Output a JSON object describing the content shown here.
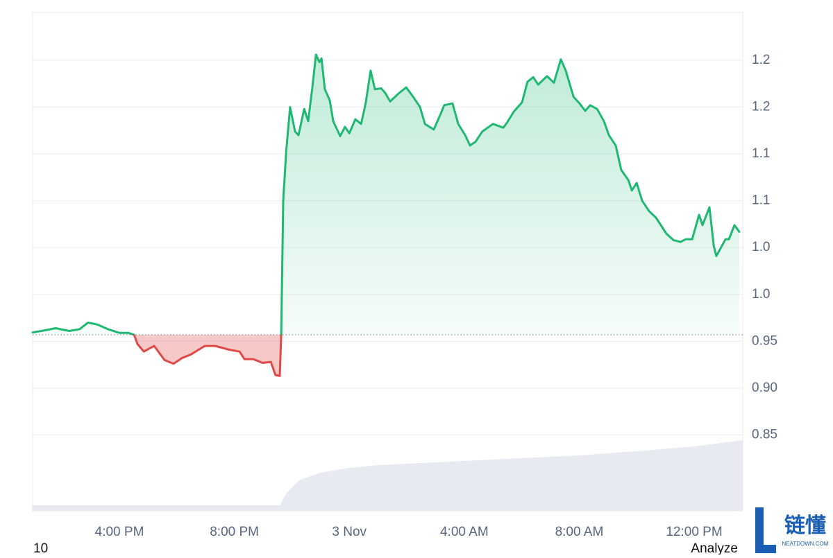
{
  "chart_data": {
    "type": "line",
    "x": [
      12.98,
      13.29,
      13.78,
      14.26,
      14.62,
      14.91,
      15.23,
      15.59,
      16.0,
      16.31,
      16.51,
      16.63,
      16.85,
      17.21,
      17.57,
      17.88,
      18.17,
      18.49,
      18.97,
      19.33,
      19.82,
      20.18,
      20.35,
      20.66,
      20.98,
      21.27,
      21.43,
      21.58,
      21.63,
      21.7,
      21.8,
      21.94,
      22.11,
      22.23,
      22.43,
      22.57,
      22.71,
      22.84,
      22.96,
      23.03,
      23.15,
      23.32,
      23.44,
      23.68,
      23.85,
      24.0,
      24.21,
      24.41,
      24.57,
      24.74,
      24.89,
      25.11,
      25.25,
      25.42,
      25.73,
      25.98,
      26.22,
      26.46,
      26.63,
      26.94,
      27.18,
      27.3,
      27.59,
      27.79,
      28.03,
      28.2,
      28.39,
      28.63,
      29.0,
      29.36,
      29.48,
      29.72,
      30.01,
      30.2,
      30.4,
      30.57,
      30.88,
      31.12,
      31.36,
      31.53,
      31.8,
      32.01,
      32.21,
      32.38,
      32.62,
      32.86,
      33.03,
      33.27,
      33.46,
      33.71,
      33.83,
      34.0,
      34.19,
      34.43,
      34.67,
      35.03,
      35.28,
      35.52,
      35.71,
      35.93,
      36.17,
      36.29,
      36.53,
      36.68,
      36.77,
      37.09,
      37.21,
      37.4,
      37.57
    ],
    "values": [
      0.9595,
      0.961,
      0.964,
      0.961,
      0.963,
      0.97,
      0.968,
      0.963,
      0.959,
      0.959,
      0.957,
      0.947,
      0.939,
      0.945,
      0.93,
      0.926,
      0.932,
      0.936,
      0.945,
      0.945,
      0.941,
      0.939,
      0.931,
      0.931,
      0.927,
      0.928,
      0.914,
      0.913,
      0.957,
      1.1,
      1.152,
      1.2,
      1.174,
      1.17,
      1.198,
      1.185,
      1.22,
      1.256,
      1.248,
      1.252,
      1.219,
      1.207,
      1.185,
      1.169,
      1.179,
      1.172,
      1.187,
      1.182,
      1.204,
      1.239,
      1.219,
      1.22,
      1.215,
      1.206,
      1.215,
      1.221,
      1.211,
      1.2,
      1.182,
      1.176,
      1.193,
      1.202,
      1.204,
      1.182,
      1.17,
      1.159,
      1.163,
      1.174,
      1.182,
      1.178,
      1.183,
      1.195,
      1.205,
      1.227,
      1.232,
      1.224,
      1.233,
      1.226,
      1.251,
      1.239,
      1.211,
      1.204,
      1.196,
      1.202,
      1.198,
      1.185,
      1.17,
      1.159,
      1.133,
      1.122,
      1.111,
      1.119,
      1.1,
      1.089,
      1.082,
      1.065,
      1.058,
      1.056,
      1.059,
      1.059,
      1.085,
      1.074,
      1.093,
      1.052,
      1.041,
      1.059,
      1.059,
      1.074,
      1.067
    ],
    "baseline": 0.957,
    "color_up": "#1fb872",
    "color_down": "#e04848",
    "xlim": [
      12.98,
      37.69
    ],
    "ylim": [
      0.769,
      1.301
    ],
    "xticks": [
      {
        "value": 16,
        "label": "4:00 PM"
      },
      {
        "value": 20,
        "label": "8:00 PM"
      },
      {
        "value": 24,
        "label": "3 Nov"
      },
      {
        "value": 28,
        "label": "4:00 AM"
      },
      {
        "value": 32,
        "label": "8:00 AM"
      },
      {
        "value": 36,
        "label": "12:00 PM"
      }
    ],
    "yticks": [
      0.85,
      {
        "value": 0.9,
        "label": "0.90"
      },
      0.95,
      {
        "value": 1.0,
        "label": "1.0"
      },
      {
        "value": 1.05,
        "label": "1.0"
      },
      {
        "value": 1.1,
        "label": "1.1"
      },
      {
        "value": 1.15,
        "label": "1.1"
      },
      {
        "value": 1.2,
        "label": "1.2"
      },
      {
        "value": 1.25,
        "label": "1.2"
      }
    ],
    "grid": true,
    "volume": {
      "x": [
        12.98,
        21.6,
        21.7,
        21.9,
        22.3,
        23.0,
        24.0,
        25.0,
        26.0,
        28.0,
        30.0,
        32.0,
        34.0,
        36.0,
        37.69
      ],
      "values": [
        8,
        8,
        18,
        30,
        45,
        55,
        62,
        66,
        68,
        72,
        76,
        80,
        86,
        93,
        102
      ],
      "ylim": [
        0,
        100
      ],
      "color": "#e7eaf0"
    }
  },
  "footer": {
    "left": "10",
    "right": "Analyze"
  },
  "watermark": {
    "text": "链懂",
    "subtext": "NEATDOWN.COM"
  }
}
